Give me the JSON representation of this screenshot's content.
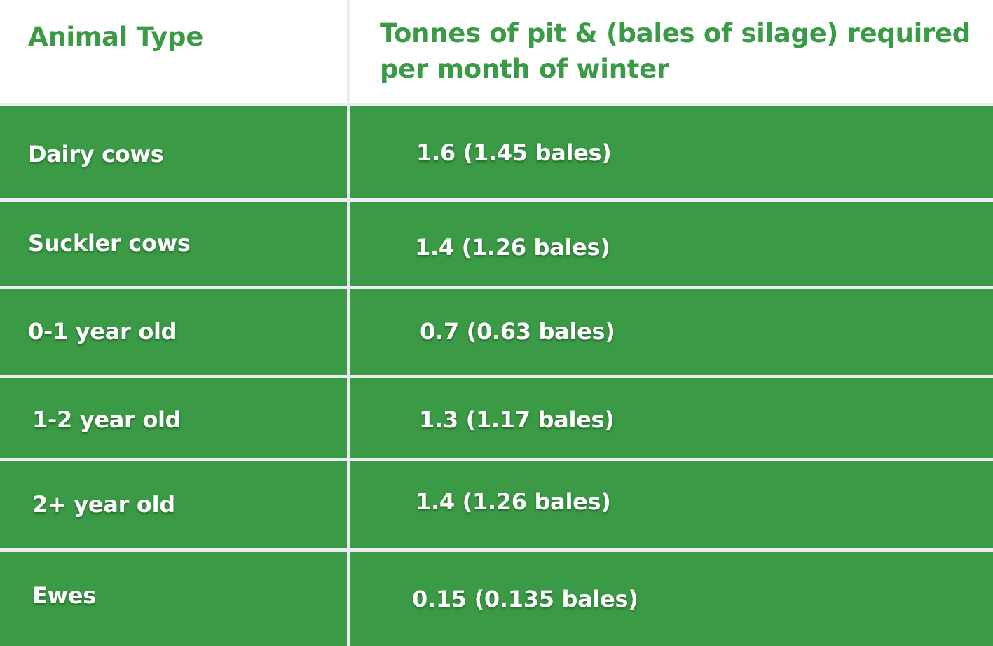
{
  "chart_data": {
    "type": "table",
    "columns": [
      "Animal Type",
      "Tonnes of pit & (bales of silage) required per month of winter"
    ],
    "header": {
      "animal_type": "Animal Type",
      "tonnes": "Tonnes of pit & (bales of silage) required per month of winter"
    },
    "rows": [
      {
        "animal": "Dairy cows",
        "value": "1.6 (1.45 bales)"
      },
      {
        "animal": "Suckler cows",
        "value": "1.4 (1.26 bales)"
      },
      {
        "animal": "0-1 year old",
        "value": "0.7 (0.63 bales)"
      },
      {
        "animal": "1-2 year old",
        "value": "1.3 (1.17 bales)"
      },
      {
        "animal": "2+ year old",
        "value": "1.4 (1.26 bales)"
      },
      {
        "animal": "Ewes",
        "value": "0.15 (0.135 bales)"
      }
    ]
  },
  "colors": {
    "header_text": "#3a9a45",
    "row_background": "#3a9a45",
    "row_text": "#ffffff",
    "grid_lines": "#e9edf2",
    "header_background": "#ffffff"
  }
}
